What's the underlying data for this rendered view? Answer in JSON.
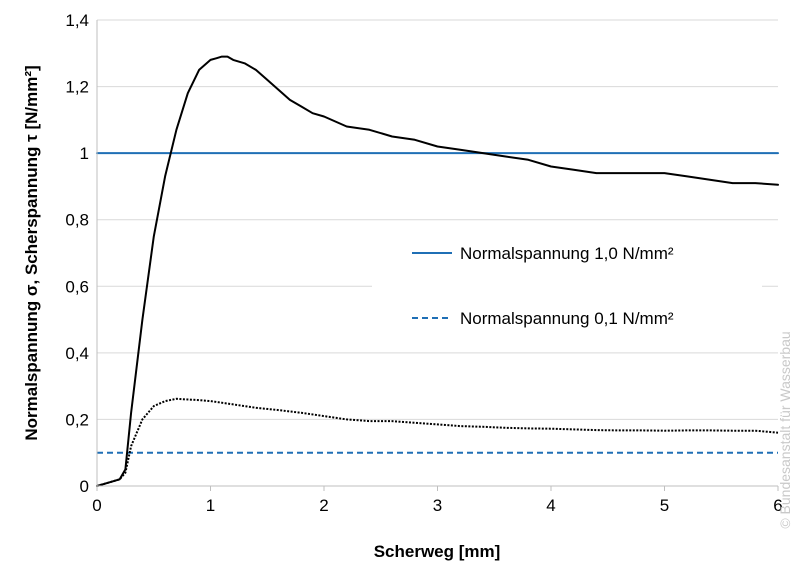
{
  "chart_data": {
    "type": "line",
    "xlabel": "Scherweg [mm]",
    "ylabel": "Normalspannung σ, Scherspannung τ [N/mm²]",
    "xlim": [
      0,
      6
    ],
    "ylim": [
      0,
      1.4
    ],
    "x_ticks": [
      "0",
      "1",
      "2",
      "3",
      "4",
      "5",
      "6"
    ],
    "y_ticks": [
      "0",
      "0,2",
      "0,4",
      "0,6",
      "0,8",
      "1",
      "1,2",
      "1,4"
    ],
    "grid": "horizontal",
    "legend_position": "center-right",
    "watermark": "© Bundesanstalt für Wasserbau",
    "series": [
      {
        "name": "Normalspannung 1,0 N/mm²",
        "style": "solid",
        "color": "#1f6fb5",
        "x": [
          0,
          6
        ],
        "y": [
          1.0,
          1.0
        ]
      },
      {
        "name": "Normalspannung 0,1 N/mm²",
        "style": "dashed",
        "color": "#1f6fb5",
        "x": [
          0,
          6
        ],
        "y": [
          0.1,
          0.1
        ]
      },
      {
        "style": "solid",
        "color": "#000000",
        "x": [
          0,
          0.1,
          0.2,
          0.25,
          0.3,
          0.4,
          0.5,
          0.6,
          0.7,
          0.8,
          0.9,
          1.0,
          1.05,
          1.1,
          1.15,
          1.2,
          1.3,
          1.4,
          1.5,
          1.6,
          1.7,
          1.8,
          1.9,
          2.0,
          2.2,
          2.4,
          2.6,
          2.8,
          3.0,
          3.2,
          3.4,
          3.6,
          3.8,
          4.0,
          4.2,
          4.4,
          4.6,
          4.8,
          5.0,
          5.2,
          5.4,
          5.6,
          5.8,
          6.0
        ],
        "y": [
          0,
          0.01,
          0.02,
          0.05,
          0.22,
          0.5,
          0.75,
          0.93,
          1.07,
          1.18,
          1.25,
          1.28,
          1.285,
          1.29,
          1.29,
          1.28,
          1.27,
          1.25,
          1.22,
          1.19,
          1.16,
          1.14,
          1.12,
          1.11,
          1.08,
          1.07,
          1.05,
          1.04,
          1.02,
          1.01,
          1.0,
          0.99,
          0.98,
          0.96,
          0.95,
          0.94,
          0.94,
          0.94,
          0.94,
          0.93,
          0.92,
          0.91,
          0.91,
          0.905
        ]
      },
      {
        "style": "dotted",
        "color": "#000000",
        "x": [
          0,
          0.1,
          0.2,
          0.25,
          0.3,
          0.4,
          0.5,
          0.6,
          0.7,
          0.8,
          0.9,
          1.0,
          1.2,
          1.4,
          1.6,
          1.8,
          2.0,
          2.2,
          2.4,
          2.6,
          2.8,
          3.0,
          3.2,
          3.4,
          3.6,
          3.8,
          4.0,
          4.2,
          4.4,
          4.6,
          4.8,
          5.0,
          5.2,
          5.4,
          5.6,
          5.8,
          6.0
        ],
        "y": [
          0,
          0.01,
          0.02,
          0.04,
          0.12,
          0.2,
          0.24,
          0.255,
          0.262,
          0.26,
          0.258,
          0.255,
          0.245,
          0.235,
          0.228,
          0.22,
          0.21,
          0.2,
          0.195,
          0.195,
          0.19,
          0.185,
          0.18,
          0.178,
          0.175,
          0.173,
          0.172,
          0.17,
          0.168,
          0.167,
          0.167,
          0.166,
          0.167,
          0.167,
          0.166,
          0.166,
          0.16
        ]
      }
    ]
  }
}
